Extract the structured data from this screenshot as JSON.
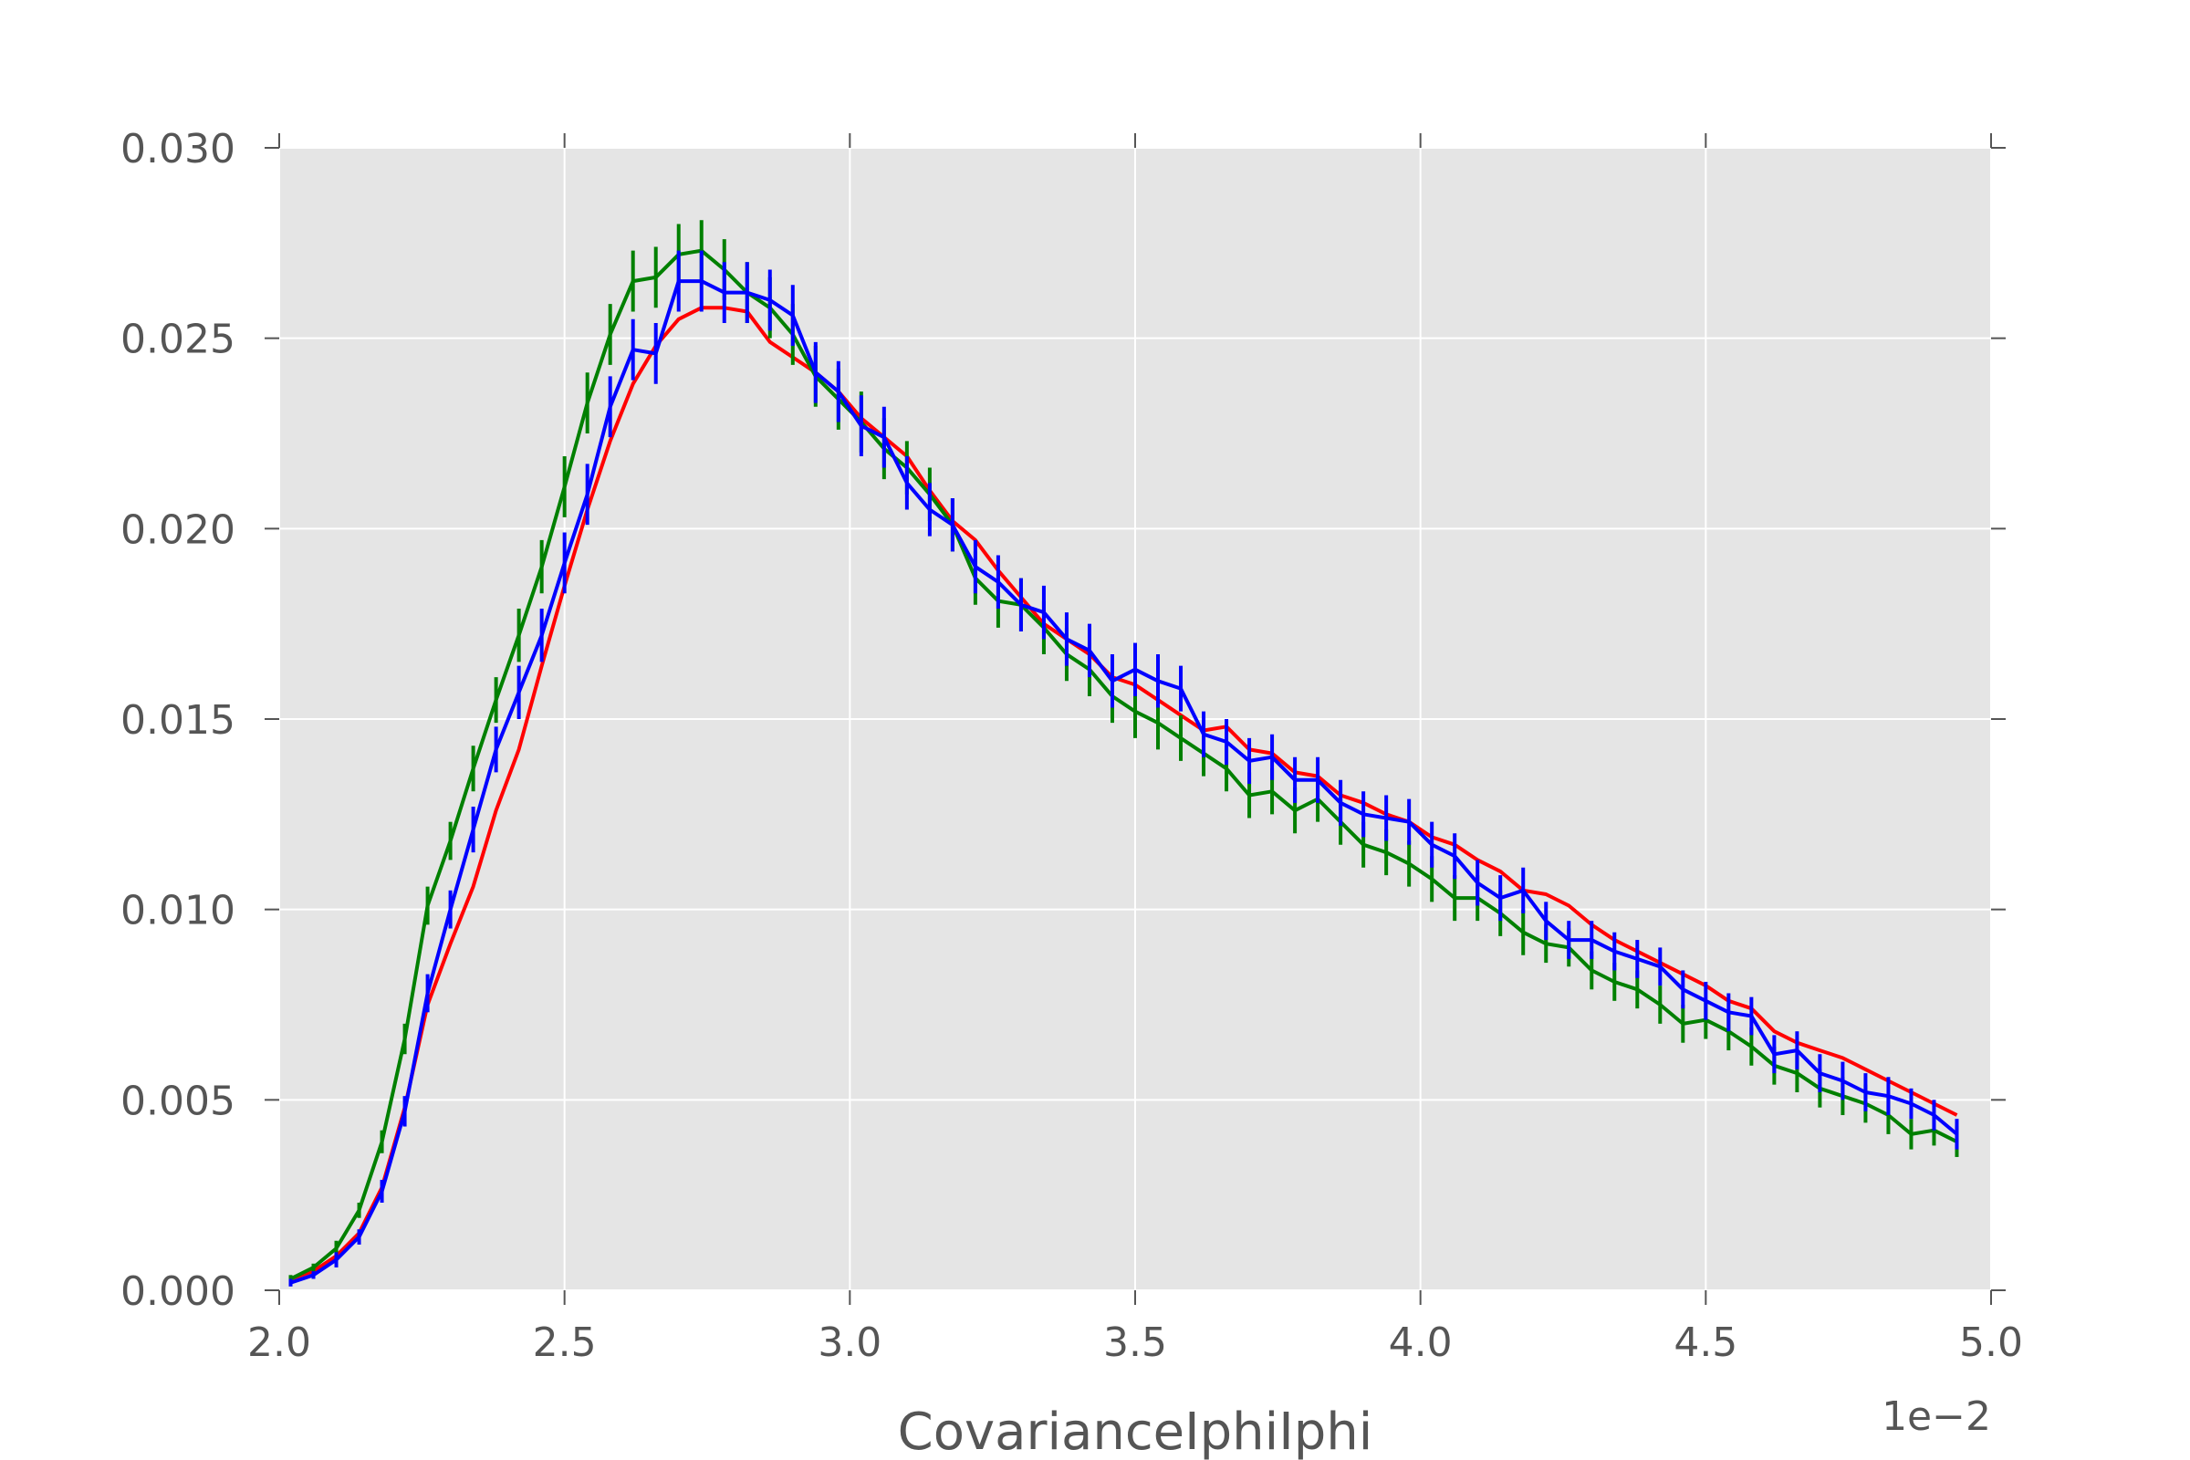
{
  "chart_data": {
    "type": "line",
    "title": "",
    "xlabel": "CovarianceIphiIphi",
    "ylabel": "",
    "x_offset_label": "1e−2",
    "xlim": [
      2.0,
      5.0
    ],
    "ylim": [
      0.0,
      0.03
    ],
    "xticks": [
      2.0,
      2.5,
      3.0,
      3.5,
      4.0,
      4.5,
      5.0
    ],
    "xtick_labels": [
      "2.0",
      "2.5",
      "3.0",
      "3.5",
      "4.0",
      "4.5",
      "5.0"
    ],
    "yticks": [
      0.0,
      0.005,
      0.01,
      0.015,
      0.02,
      0.025,
      0.03
    ],
    "ytick_labels": [
      "0.000",
      "0.005",
      "0.010",
      "0.015",
      "0.020",
      "0.025",
      "0.030"
    ],
    "grid": true,
    "background": "#e5e5e5",
    "x": [
      2.02,
      2.06,
      2.1,
      2.14,
      2.18,
      2.22,
      2.26,
      2.3,
      2.34,
      2.38,
      2.42,
      2.46,
      2.5,
      2.54,
      2.58,
      2.62,
      2.66,
      2.7,
      2.74,
      2.78,
      2.82,
      2.86,
      2.9,
      2.94,
      2.98,
      3.02,
      3.06,
      3.1,
      3.14,
      3.18,
      3.22,
      3.26,
      3.3,
      3.34,
      3.38,
      3.42,
      3.46,
      3.5,
      3.54,
      3.58,
      3.62,
      3.66,
      3.7,
      3.74,
      3.78,
      3.82,
      3.86,
      3.9,
      3.94,
      3.98,
      4.02,
      4.06,
      4.1,
      4.14,
      4.18,
      4.22,
      4.26,
      4.3,
      4.34,
      4.38,
      4.42,
      4.46,
      4.5,
      4.54,
      4.58,
      4.62,
      4.66,
      4.7,
      4.74,
      4.78,
      4.82,
      4.86,
      4.9,
      4.94
    ],
    "series": [
      {
        "color": "#ff0000",
        "values": [
          0.0003,
          0.0005,
          0.0009,
          0.0015,
          0.0027,
          0.0048,
          0.0075,
          0.0091,
          0.0106,
          0.0126,
          0.0142,
          0.0164,
          0.0185,
          0.0205,
          0.0223,
          0.0238,
          0.0248,
          0.0255,
          0.0258,
          0.0258,
          0.0257,
          0.0249,
          0.0245,
          0.0241,
          0.0236,
          0.0229,
          0.0224,
          0.0219,
          0.021,
          0.0202,
          0.0197,
          0.0189,
          0.0182,
          0.0175,
          0.0171,
          0.0167,
          0.0161,
          0.0159,
          0.0155,
          0.0151,
          0.0147,
          0.0148,
          0.0142,
          0.0141,
          0.0136,
          0.0135,
          0.013,
          0.0128,
          0.0125,
          0.0123,
          0.0119,
          0.0117,
          0.0113,
          0.011,
          0.0105,
          0.0104,
          0.0101,
          0.0096,
          0.0092,
          0.0089,
          0.0086,
          0.0083,
          0.008,
          0.0076,
          0.0074,
          0.0068,
          0.0065,
          0.0063,
          0.0061,
          0.0058,
          0.0055,
          0.0052,
          0.0049,
          0.0046
        ],
        "error": []
      },
      {
        "color": "#008000",
        "values": [
          0.0003,
          0.0006,
          0.0011,
          0.0021,
          0.0039,
          0.0066,
          0.0101,
          0.0118,
          0.0137,
          0.0155,
          0.0172,
          0.019,
          0.0211,
          0.0233,
          0.0251,
          0.0265,
          0.0266,
          0.0272,
          0.0273,
          0.0268,
          0.0262,
          0.0258,
          0.0251,
          0.024,
          0.0234,
          0.0228,
          0.0221,
          0.0216,
          0.0209,
          0.0201,
          0.0187,
          0.0181,
          0.018,
          0.0174,
          0.0167,
          0.0163,
          0.0156,
          0.0152,
          0.0149,
          0.0145,
          0.0141,
          0.0137,
          0.013,
          0.0131,
          0.0126,
          0.0129,
          0.0123,
          0.0117,
          0.0115,
          0.0112,
          0.0108,
          0.0103,
          0.0103,
          0.0099,
          0.0094,
          0.0091,
          0.009,
          0.0084,
          0.0081,
          0.0079,
          0.0075,
          0.007,
          0.0071,
          0.0068,
          0.0064,
          0.0059,
          0.0057,
          0.0053,
          0.0051,
          0.0049,
          0.0046,
          0.0041,
          0.0042,
          0.0039
        ],
        "error": [
          0.0001,
          0.0001,
          0.0002,
          0.0002,
          0.0003,
          0.0004,
          0.0005,
          0.0005,
          0.0006,
          0.0006,
          0.0007,
          0.0007,
          0.0008,
          0.0008,
          0.0008,
          0.0008,
          0.0008,
          0.0008,
          0.0008,
          0.0008,
          0.0008,
          0.0008,
          0.0008,
          0.0008,
          0.0008,
          0.0008,
          0.0008,
          0.0007,
          0.0007,
          0.0007,
          0.0007,
          0.0007,
          0.0007,
          0.0007,
          0.0007,
          0.0007,
          0.0007,
          0.0007,
          0.0007,
          0.0006,
          0.0006,
          0.0006,
          0.0006,
          0.0006,
          0.0006,
          0.0006,
          0.0006,
          0.0006,
          0.0006,
          0.0006,
          0.0006,
          0.0006,
          0.0006,
          0.0006,
          0.0006,
          0.0005,
          0.0005,
          0.0005,
          0.0005,
          0.0005,
          0.0005,
          0.0005,
          0.0005,
          0.0005,
          0.0005,
          0.0005,
          0.0005,
          0.0005,
          0.0005,
          0.0005,
          0.0005,
          0.0004,
          0.0004,
          0.0004
        ]
      },
      {
        "color": "#0000ff",
        "values": [
          0.0002,
          0.0004,
          0.0008,
          0.0014,
          0.0026,
          0.0047,
          0.0078,
          0.01,
          0.0121,
          0.0142,
          0.0157,
          0.0172,
          0.0191,
          0.0209,
          0.0232,
          0.0247,
          0.0246,
          0.0265,
          0.0265,
          0.0262,
          0.0262,
          0.026,
          0.0256,
          0.0241,
          0.0236,
          0.0227,
          0.0224,
          0.0212,
          0.0205,
          0.0201,
          0.019,
          0.0186,
          0.018,
          0.0178,
          0.0171,
          0.0168,
          0.016,
          0.0163,
          0.016,
          0.0158,
          0.0146,
          0.0144,
          0.0139,
          0.014,
          0.0134,
          0.0134,
          0.0128,
          0.0125,
          0.0124,
          0.0123,
          0.0117,
          0.0114,
          0.0107,
          0.0103,
          0.0105,
          0.0097,
          0.0092,
          0.0092,
          0.0089,
          0.0087,
          0.0085,
          0.0079,
          0.0076,
          0.0073,
          0.0072,
          0.0062,
          0.0063,
          0.0057,
          0.0055,
          0.0052,
          0.0051,
          0.0049,
          0.0046,
          0.0041
        ],
        "error": [
          0.0001,
          0.0001,
          0.0002,
          0.0002,
          0.0003,
          0.0004,
          0.0005,
          0.0005,
          0.0006,
          0.0006,
          0.0007,
          0.0007,
          0.0008,
          0.0008,
          0.0008,
          0.0008,
          0.0008,
          0.0008,
          0.0008,
          0.0008,
          0.0008,
          0.0008,
          0.0008,
          0.0008,
          0.0008,
          0.0008,
          0.0008,
          0.0007,
          0.0007,
          0.0007,
          0.0007,
          0.0007,
          0.0007,
          0.0007,
          0.0007,
          0.0007,
          0.0007,
          0.0007,
          0.0007,
          0.0006,
          0.0006,
          0.0006,
          0.0006,
          0.0006,
          0.0006,
          0.0006,
          0.0006,
          0.0006,
          0.0006,
          0.0006,
          0.0006,
          0.0006,
          0.0006,
          0.0006,
          0.0006,
          0.0005,
          0.0005,
          0.0005,
          0.0005,
          0.0005,
          0.0005,
          0.0005,
          0.0005,
          0.0005,
          0.0005,
          0.0005,
          0.0005,
          0.0005,
          0.0005,
          0.0005,
          0.0005,
          0.0004,
          0.0004,
          0.0004
        ]
      }
    ]
  }
}
